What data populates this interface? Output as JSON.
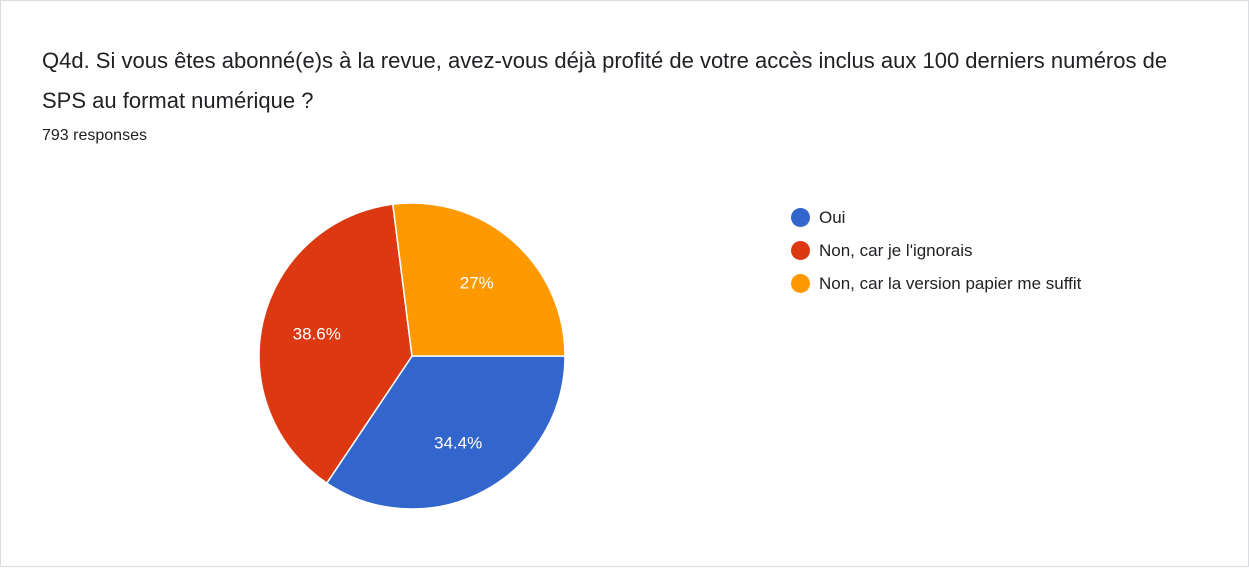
{
  "question": {
    "title": "Q4d. Si vous êtes abonné(e)s à la revue, avez-vous déjà profité de votre accès inclus aux 100 derniers numéros de SPS au format numérique ?",
    "response_count": "793 responses"
  },
  "chart_data": {
    "type": "pie",
    "categories": [
      "Oui",
      "Non, car je l'ignorais",
      "Non, car la version papier me suffit"
    ],
    "values": [
      34.4,
      38.6,
      27.0
    ],
    "labels": [
      "34.4%",
      "38.6%",
      "27%"
    ],
    "colors": [
      "#3366cc",
      "#dc3912",
      "#ff9900"
    ],
    "start_angle_deg": 90,
    "direction": "clockwise",
    "legend_position": "right"
  }
}
